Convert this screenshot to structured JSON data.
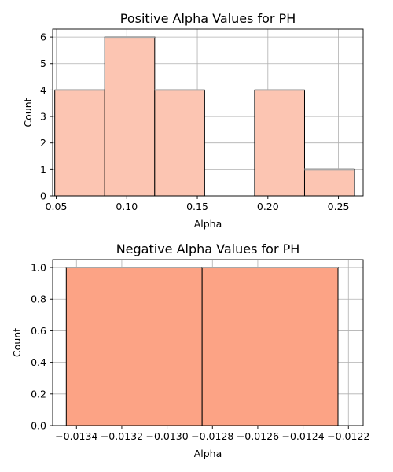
{
  "chart_data": [
    {
      "type": "bar",
      "title": "Positive Alpha Values for PH",
      "xlabel": "Alpha",
      "ylabel": "Count",
      "xlim": [
        0.0475,
        0.2675
      ],
      "ylim": [
        0,
        6.3
      ],
      "xticks": [
        "0.05",
        "0.10",
        "0.15",
        "0.20",
        "0.25"
      ],
      "yticks": [
        "0",
        "1",
        "2",
        "3",
        "4",
        "5",
        "6"
      ],
      "bar_color": "#fcc5b2",
      "bins": [
        {
          "x0": 0.049,
          "x1": 0.0844,
          "count": 4
        },
        {
          "x0": 0.0844,
          "x1": 0.1198,
          "count": 6
        },
        {
          "x0": 0.1198,
          "x1": 0.1552,
          "count": 4
        },
        {
          "x0": 0.1552,
          "x1": 0.1906,
          "count": 0
        },
        {
          "x0": 0.1906,
          "x1": 0.226,
          "count": 4
        },
        {
          "x0": 0.226,
          "x1": 0.2614,
          "count": 1
        }
      ],
      "grid": true
    },
    {
      "type": "bar",
      "title": "Negative Alpha Values for PH",
      "xlabel": "Alpha",
      "ylabel": "Count",
      "xlim": [
        -0.013505,
        -0.012135
      ],
      "ylim": [
        0,
        1.05
      ],
      "xticks": [
        "−0.0134",
        "−0.0132",
        "−0.0130",
        "−0.0128",
        "−0.0126",
        "−0.0124",
        "−0.0122"
      ],
      "yticks": [
        "0.0",
        "0.2",
        "0.4",
        "0.6",
        "0.8",
        "1.0"
      ],
      "bar_color": "#fca385",
      "bins": [
        {
          "x0": -0.013445,
          "x1": -0.0128455,
          "count": 1
        },
        {
          "x0": -0.0128455,
          "x1": -0.012246,
          "count": 1
        }
      ],
      "grid": true
    }
  ]
}
